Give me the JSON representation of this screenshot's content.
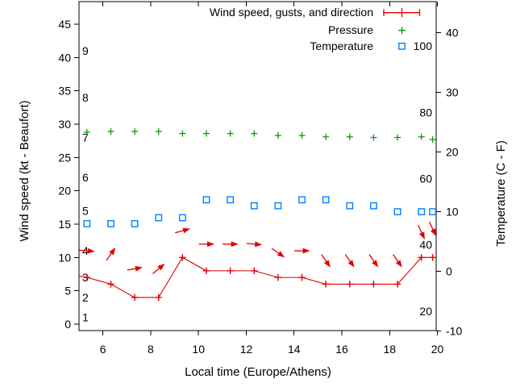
{
  "chart_data": {
    "type": "line",
    "description": "Weather station meteogram",
    "xlabel": "Local time (Europe/Athens)",
    "ylabel": "Wind speed (kt - Beaufort)",
    "y2label": "Temperature (C - F)",
    "x_axis": {
      "range": [
        5,
        20
      ],
      "ticks": [
        6,
        8,
        10,
        12,
        14,
        16,
        18,
        20
      ]
    },
    "y_left_axis": {
      "unit": "kt",
      "ticks": [
        0,
        5,
        10,
        15,
        20,
        25,
        30,
        35,
        40,
        45
      ]
    },
    "y_right_axis": {
      "unit": "C",
      "ticks": [
        -10,
        0,
        10,
        20,
        30,
        40
      ]
    },
    "beaufort_scale_labels": [
      {
        "label": "1",
        "kt": 1
      },
      {
        "label": "2",
        "kt": 4
      },
      {
        "label": "3",
        "kt": 7
      },
      {
        "label": "4",
        "kt": 11
      },
      {
        "label": "5",
        "kt": 17
      },
      {
        "label": "6",
        "kt": 22
      },
      {
        "label": "7",
        "kt": 28
      },
      {
        "label": "8",
        "kt": 34
      },
      {
        "label": "9",
        "kt": 41
      }
    ],
    "fahrenheit_scale_labels": [
      {
        "label": "20",
        "f": 20
      },
      {
        "label": "40",
        "f": 40
      },
      {
        "label": "60",
        "f": 60
      },
      {
        "label": "80",
        "f": 80
      },
      {
        "label": "100",
        "f": 100
      }
    ],
    "x_hours": [
      5.33,
      6.33,
      7.33,
      8.33,
      9.33,
      10.33,
      11.33,
      12.33,
      13.33,
      14.33,
      15.33,
      16.33,
      17.33,
      18.33,
      19.33,
      19.8
    ],
    "series": [
      {
        "name": "Wind speed, gusts, and direction",
        "color": "#e10000",
        "marker": "plus-errorbar",
        "speed_kt": [
          7,
          6,
          4,
          4,
          10,
          8,
          8,
          8,
          7,
          7,
          6,
          6,
          6,
          6,
          10,
          10
        ],
        "gust_kt": [
          11,
          10.5,
          8.3,
          8.3,
          14,
          12,
          12,
          12,
          10.7,
          11,
          9.5,
          9.5,
          9.5,
          9.5,
          13.8,
          14.3
        ],
        "direction_deg_ccw_from_east": [
          -5,
          55,
          10,
          40,
          15,
          0,
          0,
          -5,
          -35,
          0,
          -55,
          -55,
          -55,
          -55,
          -65,
          -65
        ],
        "line_enters_left_edge": {
          "x": 5.0,
          "kt": 7.2
        }
      },
      {
        "name": "Pressure",
        "color": "#00a400",
        "marker": "plus",
        "values_plotted_on_kt_axis": [
          28.8,
          28.9,
          28.9,
          28.9,
          28.6,
          28.6,
          28.6,
          28.6,
          28.3,
          28.3,
          28.1,
          28.1,
          28.0,
          28.0,
          28.1,
          27.7
        ]
      },
      {
        "name": "Temperature",
        "color": "#0080ff",
        "marker": "open-square",
        "celsius": [
          8,
          8,
          8,
          9,
          9,
          12,
          12,
          11,
          11,
          12,
          12,
          11,
          11,
          10,
          10,
          10
        ]
      }
    ],
    "grid": false,
    "legend_position": "top-right-inside"
  }
}
